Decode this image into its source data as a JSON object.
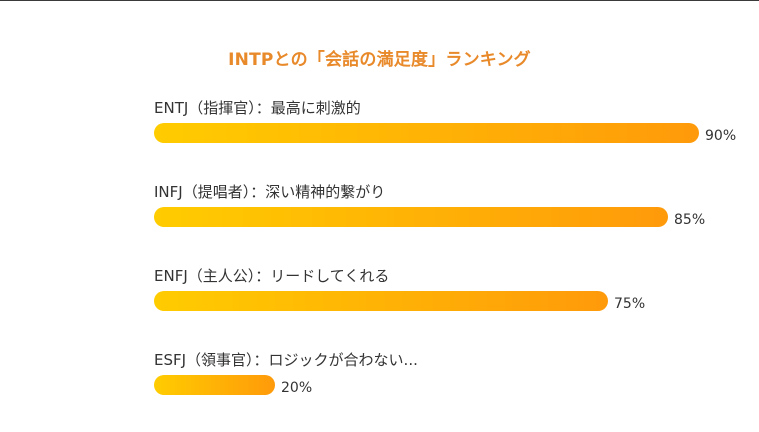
{
  "chart_data": {
    "type": "bar",
    "orientation": "horizontal",
    "title": "INTPとの「会話の満足度」ランキング",
    "categories": [
      "ENTJ（指揮官）：最高に刺激的",
      "INFJ（提唱者）：深い精神的繋がり",
      "ENFJ（主人公）：リードしてくれる",
      "ESFJ（領事官）：ロジックが合わない..."
    ],
    "values": [
      90,
      85,
      75,
      20
    ],
    "value_labels": [
      "90%",
      "85%",
      "75%",
      "20%"
    ],
    "unit": "%",
    "xlim": [
      0,
      100
    ],
    "grid": false,
    "legend": "none",
    "colors": {
      "title": "#e8892a",
      "bar_start": "#ffcc00",
      "bar_end": "#ff9a0a",
      "text": "#333333"
    }
  }
}
